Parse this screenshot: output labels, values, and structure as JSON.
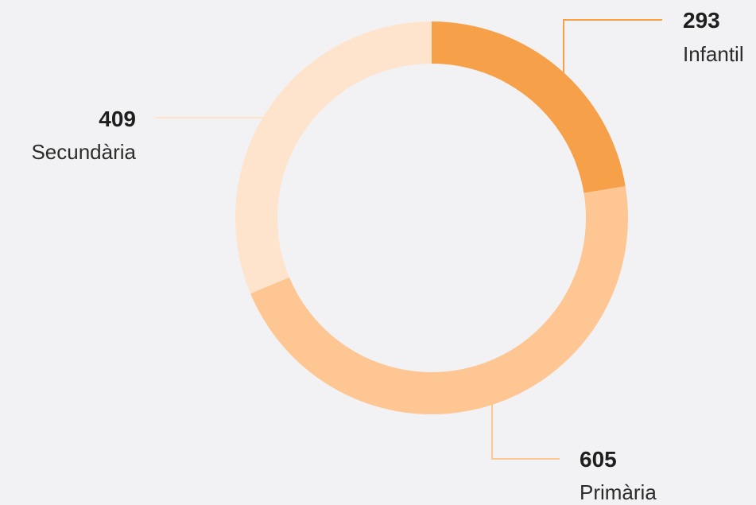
{
  "chart_data": {
    "type": "pie",
    "title": "",
    "variant": "donut",
    "slices": [
      {
        "label": "Infantil",
        "value": 293,
        "display": "293",
        "color": "#f6a04a"
      },
      {
        "label": "Primària",
        "value": 605,
        "display": "605",
        "color": "#fdc693"
      },
      {
        "label": "Secundària",
        "value": 409,
        "display": "409",
        "color": "#fee4cc"
      }
    ],
    "leader_line_colors": {
      "Infantil": "#f6a04a",
      "Primària": "#fdc693",
      "Secundària": "#fee4cc"
    }
  }
}
